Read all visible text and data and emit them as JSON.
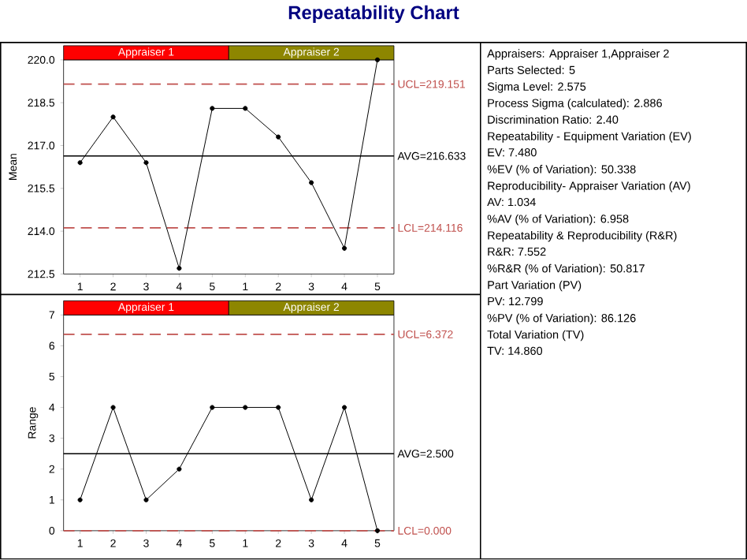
{
  "chart_data": [
    {
      "type": "line",
      "title": "Repeatability Chart",
      "ylabel": "Mean",
      "categories": [
        "1",
        "2",
        "3",
        "4",
        "5",
        "1",
        "2",
        "3",
        "4",
        "5"
      ],
      "values": [
        216.4,
        218.0,
        216.4,
        212.7,
        218.3,
        218.3,
        217.3,
        215.7,
        213.4,
        220.0
      ],
      "color": "#000000",
      "marker": "circle",
      "ylim": [
        212.5,
        220.0
      ],
      "yticks": [
        {
          "value": 212.5,
          "label": "212.5"
        },
        {
          "value": 214,
          "label": "214.0"
        },
        {
          "value": 215.5,
          "label": "215.5"
        },
        {
          "value": 217,
          "label": "217.0"
        },
        {
          "value": 218.5,
          "label": "218.5"
        },
        {
          "value": 220,
          "label": "220.0"
        }
      ],
      "ref_lines": [
        {
          "axis": "y",
          "value": 219.151,
          "label": "UCL=219.151",
          "color": "#c0504d",
          "line_style": "dashed"
        },
        {
          "axis": "y",
          "value": 216.633,
          "label": "AVG=216.633",
          "color": "#000000",
          "line_style": "solid"
        },
        {
          "axis": "y",
          "value": 214.116,
          "label": "LCL=214.116",
          "color": "#c0504d",
          "line_style": "dashed"
        }
      ],
      "annotations": [
        "Appraiser 1",
        "Appraiser 2"
      ]
    },
    {
      "type": "line",
      "ylabel": "Range",
      "categories": [
        "1",
        "2",
        "3",
        "4",
        "5",
        "1",
        "2",
        "3",
        "4",
        "5"
      ],
      "values": [
        1,
        4,
        1,
        2,
        4,
        4,
        4,
        1,
        4,
        0
      ],
      "color": "#000000",
      "marker": "circle",
      "ylim": [
        0,
        7
      ],
      "yticks": [
        0,
        1,
        2,
        3,
        4,
        5,
        6,
        7
      ],
      "ref_lines": [
        {
          "axis": "y",
          "value": 6.372,
          "label": "UCL=6.372",
          "color": "#c0504d",
          "line_style": "dashed"
        },
        {
          "axis": "y",
          "value": 2.5,
          "label": "AVG=2.500",
          "color": "#000000",
          "line_style": "solid"
        },
        {
          "axis": "y",
          "value": 0,
          "label": "LCL=0.000",
          "color": "#c0504d",
          "line_style": "dashed"
        }
      ],
      "annotations": [
        "Appraiser 1",
        "Appraiser 2"
      ]
    },
    {
      "type": "other",
      "annotations": [
        "Appraisers:  Appraiser 1,Appraiser 2",
        "Parts Selected:  5",
        "Sigma Level:  2.575",
        "Process Sigma (calculated):  2.886",
        "Discrimination Ratio:  2.40",
        "Repeatability - Equipment Variation (EV)",
        "EV:  7.480",
        "%EV (% of Variation):  50.338",
        "Reproducibility- Appraiser Variation (AV)",
        "AV:  1.034",
        "%AV (% of Variation):  6.958",
        "Repeatability & Reproducibility (R&R)",
        "R&R:  7.552",
        "%R&R (% of Variation):  50.817",
        "Part Variation (PV)",
        "PV:  12.799",
        "%PV (% of Variation):  86.126",
        "Total Variation (TV)",
        "TV:  14.860"
      ]
    }
  ]
}
